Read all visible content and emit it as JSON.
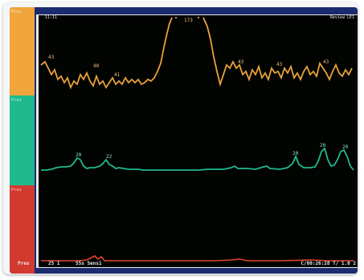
{
  "header": {
    "top_left": "11:11",
    "top_right": "Review LE1"
  },
  "channels": [
    {
      "label": "Pres",
      "color": "#e9a23a",
      "strip_color": "#f1a53b",
      "peak_label": "173",
      "annotations": [
        "43",
        "40",
        "41",
        "43",
        "43",
        "43",
        "43",
        "43",
        "43",
        "43",
        "43",
        "43"
      ]
    },
    {
      "label": "Pres",
      "color": "#1fb890",
      "strip_color": "#1fba8c",
      "annotations": [
        "20",
        "22",
        "22",
        "20",
        "20",
        "20",
        "20"
      ]
    },
    {
      "label": "Pres",
      "color": "#e2462c",
      "strip_color": "#d23a30",
      "annotations": []
    }
  ],
  "footer": {
    "left_label": "Pres",
    "speed": "25 1",
    "sweep": "5Ss Sens1",
    "time": "C/00:26:28 T/ 1.0 2"
  },
  "colors": {
    "background": "#020402",
    "frame": "#1a2c6e",
    "border": "#e8e8ec"
  }
}
